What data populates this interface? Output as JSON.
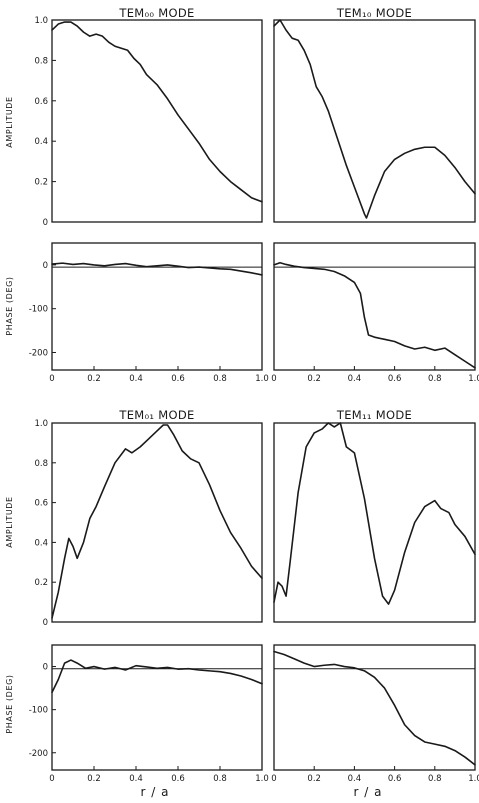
{
  "figure": {
    "x_axis_label": "r / a",
    "amplitude_label": "AMPLITUDE",
    "phase_label": "PHASE (DEG)",
    "colors": {
      "line": "#1a1a1a",
      "frame": "#1a1a1a",
      "background": "#ffffff"
    }
  },
  "chart_data": [
    {
      "type": "line",
      "title": "TEM₀₀ MODE",
      "panels": [
        {
          "name": "amplitude",
          "ylabel": "AMPLITUDE",
          "xlim": [
            0,
            1.0
          ],
          "ylim": [
            0,
            1.0
          ],
          "yticks": [
            "0",
            "0.2",
            "0.4",
            "0.6",
            "0.8",
            "1.0"
          ],
          "series": [
            {
              "x": [
                0.0,
                0.03,
                0.06,
                0.09,
                0.12,
                0.15,
                0.18,
                0.21,
                0.24,
                0.27,
                0.3,
                0.33,
                0.36,
                0.39,
                0.42,
                0.45,
                0.5,
                0.55,
                0.6,
                0.65,
                0.7,
                0.75,
                0.8,
                0.85,
                0.9,
                0.95,
                1.0
              ],
              "y": [
                0.95,
                0.98,
                0.99,
                0.99,
                0.97,
                0.94,
                0.92,
                0.93,
                0.92,
                0.89,
                0.87,
                0.86,
                0.85,
                0.81,
                0.78,
                0.73,
                0.68,
                0.61,
                0.53,
                0.46,
                0.39,
                0.31,
                0.25,
                0.2,
                0.16,
                0.12,
                0.1
              ]
            }
          ]
        },
        {
          "name": "phase",
          "ylabel": "PHASE (DEG)",
          "xlim": [
            0,
            1.0
          ],
          "ylim": [
            -240,
            50
          ],
          "yticks": [
            "0",
            "-100",
            "-200"
          ],
          "xticks": [
            "0",
            "0.2",
            "0.4",
            "0.6",
            "0.8",
            "1.0"
          ],
          "reference_line": -5,
          "series": [
            {
              "x": [
                0.0,
                0.05,
                0.1,
                0.15,
                0.2,
                0.25,
                0.3,
                0.35,
                0.4,
                0.45,
                0.5,
                0.55,
                0.6,
                0.65,
                0.7,
                0.75,
                0.8,
                0.85,
                0.9,
                0.95,
                1.0
              ],
              "y": [
                2,
                4,
                1,
                3,
                0,
                -2,
                1,
                3,
                -1,
                -4,
                -2,
                0,
                -3,
                -6,
                -5,
                -7,
                -9,
                -10,
                -14,
                -18,
                -23
              ]
            }
          ]
        }
      ]
    },
    {
      "type": "line",
      "title": "TEM₁₀ MODE",
      "panels": [
        {
          "name": "amplitude",
          "ylabel": "",
          "xlim": [
            0,
            1.0
          ],
          "ylim": [
            0,
            1.0
          ],
          "series": [
            {
              "x": [
                0.0,
                0.03,
                0.06,
                0.09,
                0.12,
                0.15,
                0.18,
                0.21,
                0.24,
                0.27,
                0.3,
                0.33,
                0.36,
                0.39,
                0.42,
                0.45,
                0.46,
                0.5,
                0.55,
                0.6,
                0.65,
                0.7,
                0.75,
                0.8,
                0.85,
                0.9,
                0.95,
                1.0
              ],
              "y": [
                0.97,
                1.0,
                0.95,
                0.91,
                0.9,
                0.85,
                0.78,
                0.67,
                0.62,
                0.55,
                0.46,
                0.37,
                0.28,
                0.2,
                0.12,
                0.04,
                0.02,
                0.13,
                0.25,
                0.31,
                0.34,
                0.36,
                0.37,
                0.37,
                0.33,
                0.27,
                0.2,
                0.14
              ]
            }
          ]
        },
        {
          "name": "phase",
          "ylabel": "",
          "xlim": [
            0,
            1.0
          ],
          "ylim": [
            -240,
            50
          ],
          "xticks": [
            "0",
            "0.2",
            "0.4",
            "0.6",
            "0.8",
            "1.0"
          ],
          "reference_line": -5,
          "series": [
            {
              "x": [
                0.0,
                0.03,
                0.06,
                0.1,
                0.15,
                0.2,
                0.25,
                0.3,
                0.35,
                0.4,
                0.43,
                0.45,
                0.47,
                0.5,
                0.55,
                0.6,
                0.65,
                0.7,
                0.75,
                0.8,
                0.85,
                0.9,
                0.95,
                1.0
              ],
              "y": [
                0,
                5,
                1,
                -3,
                -6,
                -8,
                -10,
                -15,
                -25,
                -40,
                -65,
                -120,
                -160,
                -165,
                -170,
                -175,
                -185,
                -192,
                -188,
                -195,
                -190,
                -205,
                -220,
                -235
              ]
            }
          ]
        }
      ]
    },
    {
      "type": "line",
      "title": "TEM₀₁ MODE",
      "panels": [
        {
          "name": "amplitude",
          "ylabel": "AMPLITUDE",
          "xlim": [
            0,
            1.0
          ],
          "ylim": [
            0,
            1.0
          ],
          "yticks": [
            "0",
            "0.2",
            "0.4",
            "0.6",
            "0.8",
            "1.0"
          ],
          "series": [
            {
              "x": [
                0.0,
                0.03,
                0.06,
                0.08,
                0.1,
                0.12,
                0.15,
                0.18,
                0.21,
                0.25,
                0.3,
                0.35,
                0.38,
                0.42,
                0.46,
                0.5,
                0.53,
                0.55,
                0.58,
                0.62,
                0.66,
                0.7,
                0.75,
                0.8,
                0.85,
                0.9,
                0.95,
                1.0
              ],
              "y": [
                0.02,
                0.15,
                0.32,
                0.42,
                0.38,
                0.32,
                0.4,
                0.52,
                0.58,
                0.68,
                0.8,
                0.87,
                0.85,
                0.88,
                0.92,
                0.96,
                0.99,
                0.99,
                0.94,
                0.86,
                0.82,
                0.8,
                0.69,
                0.56,
                0.45,
                0.37,
                0.28,
                0.22
              ]
            }
          ]
        },
        {
          "name": "phase",
          "ylabel": "PHASE (DEG)",
          "xlim": [
            0,
            1.0
          ],
          "ylim": [
            -240,
            50
          ],
          "yticks": [
            "0",
            "-100",
            "-200"
          ],
          "xticks": [
            "0",
            "0.2",
            "0.4",
            "0.6",
            "0.8",
            "1.0"
          ],
          "reference_line": -5,
          "series": [
            {
              "x": [
                0.0,
                0.03,
                0.06,
                0.09,
                0.12,
                0.16,
                0.2,
                0.25,
                0.3,
                0.35,
                0.4,
                0.45,
                0.5,
                0.55,
                0.6,
                0.65,
                0.7,
                0.75,
                0.8,
                0.85,
                0.9,
                0.95,
                1.0
              ],
              "y": [
                -60,
                -30,
                8,
                15,
                8,
                -4,
                0,
                -6,
                -2,
                -8,
                2,
                -1,
                -4,
                -2,
                -6,
                -5,
                -8,
                -10,
                -12,
                -16,
                -22,
                -30,
                -40
              ]
            }
          ]
        }
      ]
    },
    {
      "type": "line",
      "title": "TEM₁₁ MODE",
      "panels": [
        {
          "name": "amplitude",
          "ylabel": "",
          "xlim": [
            0,
            1.0
          ],
          "ylim": [
            0,
            1.0
          ],
          "series": [
            {
              "x": [
                0.0,
                0.02,
                0.04,
                0.06,
                0.08,
                0.12,
                0.16,
                0.2,
                0.24,
                0.27,
                0.3,
                0.33,
                0.36,
                0.4,
                0.45,
                0.5,
                0.54,
                0.57,
                0.6,
                0.65,
                0.7,
                0.75,
                0.8,
                0.83,
                0.87,
                0.9,
                0.95,
                1.0
              ],
              "y": [
                0.1,
                0.2,
                0.18,
                0.13,
                0.3,
                0.65,
                0.88,
                0.95,
                0.97,
                1.0,
                0.98,
                1.0,
                0.88,
                0.85,
                0.62,
                0.32,
                0.13,
                0.09,
                0.16,
                0.35,
                0.5,
                0.58,
                0.61,
                0.57,
                0.55,
                0.49,
                0.43,
                0.34
              ]
            }
          ]
        },
        {
          "name": "phase",
          "ylabel": "",
          "xlim": [
            0,
            1.0
          ],
          "ylim": [
            -240,
            50
          ],
          "xticks": [
            "0",
            "0.2",
            "0.4",
            "0.6",
            "0.8",
            "1.0"
          ],
          "reference_line": -5,
          "series": [
            {
              "x": [
                0.0,
                0.05,
                0.1,
                0.15,
                0.2,
                0.25,
                0.3,
                0.35,
                0.4,
                0.45,
                0.5,
                0.55,
                0.6,
                0.65,
                0.7,
                0.75,
                0.8,
                0.85,
                0.9,
                0.95,
                1.0
              ],
              "y": [
                35,
                28,
                18,
                8,
                0,
                3,
                5,
                0,
                -3,
                -10,
                -25,
                -50,
                -90,
                -135,
                -160,
                -175,
                -180,
                -185,
                -195,
                -210,
                -228
              ]
            }
          ]
        }
      ]
    }
  ]
}
